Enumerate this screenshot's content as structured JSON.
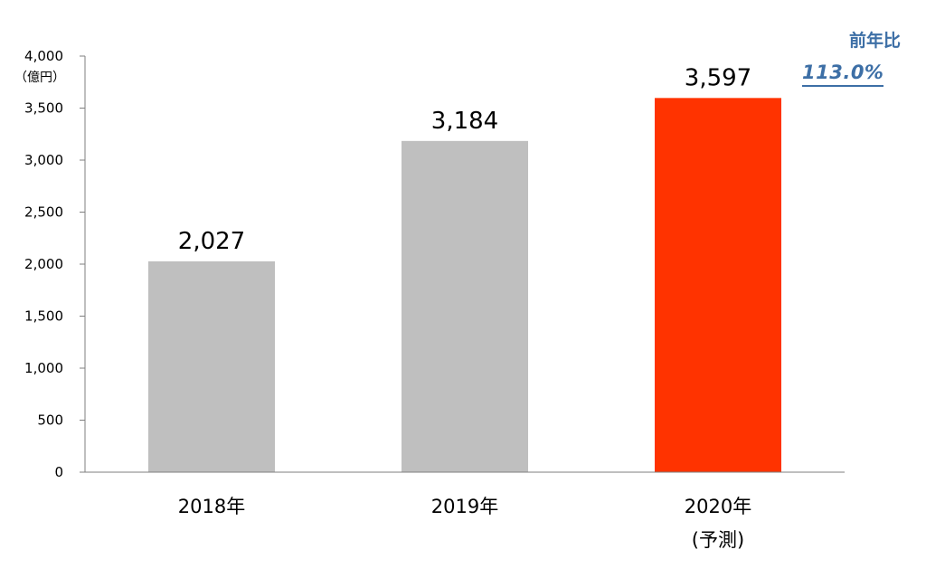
{
  "chart_data": {
    "type": "bar",
    "categories": [
      "2018年",
      "2019年",
      "2020年"
    ],
    "category_sublabels": [
      "",
      "",
      "(予測)"
    ],
    "values": [
      2027,
      3184,
      3597
    ],
    "value_labels": [
      "2,027",
      "3,184",
      "3,597"
    ],
    "ylim": [
      0,
      4000
    ],
    "yticks": [
      0,
      500,
      1000,
      1500,
      2000,
      2500,
      3000,
      3500,
      4000
    ],
    "ytick_labels": [
      "0",
      "500",
      "1,000",
      "1,500",
      "2,000",
      "2,500",
      "3,000",
      "3,500",
      "4,000"
    ],
    "y_unit": "（億円）",
    "bar_colors": [
      "#bfbfbf",
      "#bfbfbf",
      "#ff3300"
    ],
    "grid": false,
    "annotation": {
      "title": "前年比",
      "value": "113.0%",
      "color": "#3d6fa6"
    }
  }
}
